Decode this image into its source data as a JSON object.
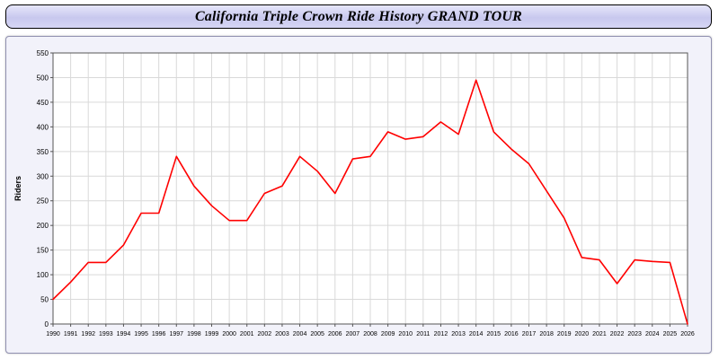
{
  "header": {
    "title": "California Triple Crown Ride History GRAND TOUR"
  },
  "chart_data": {
    "type": "line",
    "title": "California Triple Crown Ride History GRAND TOUR",
    "xlabel": "",
    "ylabel": "Riders",
    "ylim": [
      0,
      550
    ],
    "ytick_step": 50,
    "grid": true,
    "legend_position": "none",
    "line_color": "#ff0000",
    "categories": [
      1990,
      1991,
      1992,
      1993,
      1994,
      1995,
      1996,
      1997,
      1998,
      1999,
      2000,
      2001,
      2002,
      2003,
      2004,
      2005,
      2006,
      2007,
      2008,
      2009,
      2010,
      2011,
      2012,
      2013,
      2014,
      2015,
      2016,
      2017,
      2018,
      2019,
      2020,
      2021,
      2022,
      2023,
      2024,
      2025,
      2026
    ],
    "series": [
      {
        "name": "Riders",
        "values": [
          50,
          85,
          125,
          125,
          160,
          225,
          225,
          340,
          280,
          240,
          210,
          210,
          265,
          280,
          340,
          310,
          265,
          335,
          340,
          390,
          375,
          380,
          410,
          385,
          495,
          390,
          355,
          325,
          270,
          215,
          135,
          130,
          82,
          130,
          127,
          125,
          0
        ]
      }
    ]
  },
  "colors": {
    "line": "#ff0000",
    "grid": "#d9d9d9",
    "plot_bg": "#ffffff",
    "panel_bg": "#f2f2fa",
    "panel_border": "#9090b0",
    "title_bg": "#ccccee"
  }
}
